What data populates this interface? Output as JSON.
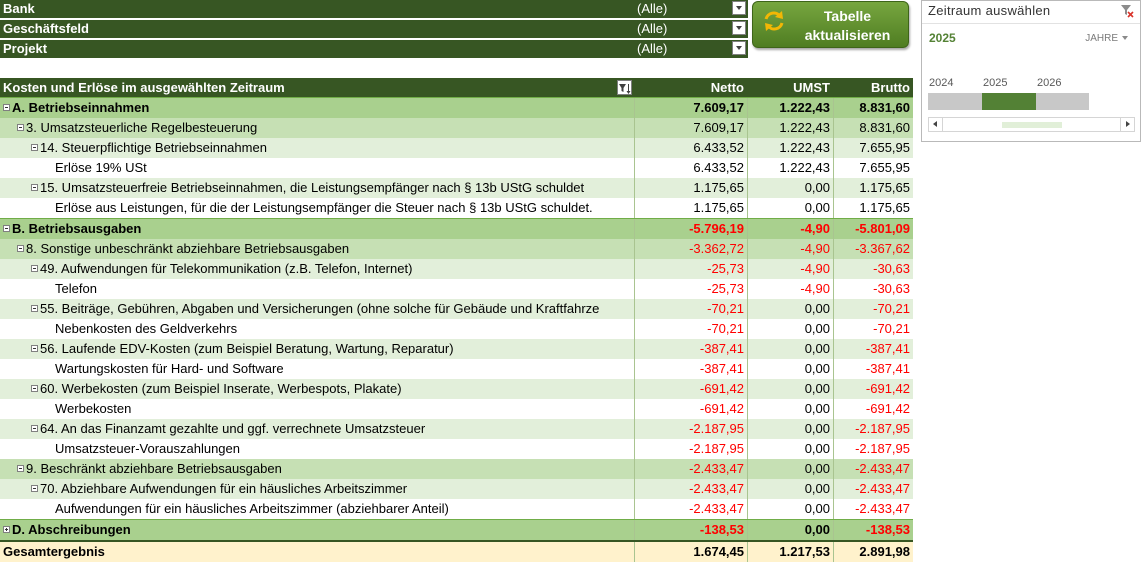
{
  "filters": [
    {
      "label": "Bank",
      "value": "(Alle)"
    },
    {
      "label": "Geschäftsfeld",
      "value": "(Alle)"
    },
    {
      "label": "Projekt",
      "value": "(Alle)"
    }
  ],
  "refresh_button": {
    "line1": "Tabelle",
    "line2": "aktualisieren",
    "icon": "refresh-icon"
  },
  "timeline": {
    "title": "Zeitraum auswählen",
    "selected": "2025",
    "level": "JAHRE",
    "years": [
      "2024",
      "2025",
      "2026"
    ],
    "selected_year": "2025",
    "clear_icon": "clear-filter-icon"
  },
  "table": {
    "header": {
      "label": "Kosten und Erlöse im ausgewählten Zeitraum",
      "netto": "Netto",
      "umst": "UMST",
      "brutto": "Brutto"
    },
    "rows": [
      {
        "level": 0,
        "toggle": "minus",
        "label": "A. Betriebseinnahmen",
        "netto": "7.609,17",
        "umst": "1.222,43",
        "brutto": "8.831,60"
      },
      {
        "level": 1,
        "toggle": "minus",
        "label": "3. Umsatzsteuerliche Regelbesteuerung",
        "netto": "7.609,17",
        "umst": "1.222,43",
        "brutto": "8.831,60"
      },
      {
        "level": 2,
        "toggle": "minus",
        "label": "14. Steuerpflichtige Betriebseinnahmen",
        "netto": "6.433,52",
        "umst": "1.222,43",
        "brutto": "7.655,95"
      },
      {
        "level": 3,
        "toggle": "",
        "label": "Erlöse 19% USt",
        "netto": "6.433,52",
        "umst": "1.222,43",
        "brutto": "7.655,95"
      },
      {
        "level": 2,
        "toggle": "minus",
        "label": "15. Umsatzsteuerfreie Betriebseinnahmen, die Leistungsempfänger nach § 13b UStG schuldet",
        "netto": "1.175,65",
        "umst": "0,00",
        "brutto": "1.175,65"
      },
      {
        "level": 3,
        "toggle": "",
        "label": "Erlöse aus Leistungen, für die der Leistungsempfänger die Steuer nach § 13b UStG schuldet.",
        "netto": "1.175,65",
        "umst": "0,00",
        "brutto": "1.175,65"
      },
      {
        "level": 0,
        "toggle": "minus",
        "label": "B. Betriebsausgaben",
        "netto": "-5.796,19",
        "umst": "-4,90",
        "brutto": "-5.801,09"
      },
      {
        "level": 1,
        "toggle": "minus",
        "label": "8. Sonstige unbeschränkt abziehbare Betriebsausgaben",
        "netto": "-3.362,72",
        "umst": "-4,90",
        "brutto": "-3.367,62"
      },
      {
        "level": 2,
        "toggle": "minus",
        "label": "49. Aufwendungen für Telekommunikation (z.B. Telefon, Internet)",
        "netto": "-25,73",
        "umst": "-4,90",
        "brutto": "-30,63"
      },
      {
        "level": 3,
        "toggle": "",
        "label": "Telefon",
        "netto": "-25,73",
        "umst": "-4,90",
        "brutto": "-30,63"
      },
      {
        "level": 2,
        "toggle": "minus",
        "label": "55. Beiträge, Gebühren, Abgaben und Versicherungen (ohne solche für Gebäude und Kraftfahrze",
        "netto": "-70,21",
        "umst": "0,00",
        "brutto": "-70,21"
      },
      {
        "level": 3,
        "toggle": "",
        "label": "Nebenkosten des Geldverkehrs",
        "netto": "-70,21",
        "umst": "0,00",
        "brutto": "-70,21"
      },
      {
        "level": 2,
        "toggle": "minus",
        "label": "56. Laufende EDV-Kosten (zum Beispiel Beratung, Wartung, Reparatur)",
        "netto": "-387,41",
        "umst": "0,00",
        "brutto": "-387,41"
      },
      {
        "level": 3,
        "toggle": "",
        "label": "Wartungskosten für Hard- und Software",
        "netto": "-387,41",
        "umst": "0,00",
        "brutto": "-387,41"
      },
      {
        "level": 2,
        "toggle": "minus",
        "label": "60. Werbekosten (zum Beispiel Inserate, Werbespots, Plakate)",
        "netto": "-691,42",
        "umst": "0,00",
        "brutto": "-691,42"
      },
      {
        "level": 3,
        "toggle": "",
        "label": "Werbekosten",
        "netto": "-691,42",
        "umst": "0,00",
        "brutto": "-691,42"
      },
      {
        "level": 2,
        "toggle": "minus",
        "label": "64. An das Finanzamt gezahlte und ggf. verrechnete Umsatzsteuer",
        "netto": "-2.187,95",
        "umst": "0,00",
        "brutto": "-2.187,95"
      },
      {
        "level": 3,
        "toggle": "",
        "label": "Umsatzsteuer-Vorauszahlungen",
        "netto": "-2.187,95",
        "umst": "0,00",
        "brutto": "-2.187,95"
      },
      {
        "level": 1,
        "toggle": "minus",
        "label": "9. Beschränkt abziehbare Betriebsausgaben",
        "netto": "-2.433,47",
        "umst": "0,00",
        "brutto": "-2.433,47"
      },
      {
        "level": 2,
        "toggle": "minus",
        "label": "70. Abziehbare Aufwendungen für ein häusliches Arbeitszimmer",
        "netto": "-2.433,47",
        "umst": "0,00",
        "brutto": "-2.433,47"
      },
      {
        "level": 3,
        "toggle": "",
        "label": "Aufwendungen für ein häusliches Arbeitszimmer (abziehbarer Anteil)",
        "netto": "-2.433,47",
        "umst": "0,00",
        "brutto": "-2.433,47"
      },
      {
        "level": 0,
        "toggle": "plus",
        "label": "D. Abschreibungen",
        "netto": "-138,53",
        "umst": "0,00",
        "brutto": "-138,53"
      }
    ],
    "total": {
      "label": "Gesamtergebnis",
      "netto": "1.674,45",
      "umst": "1.217,53",
      "brutto": "2.891,98"
    }
  },
  "colors": {
    "header_green": "#375623",
    "accent_green": "#538135",
    "negative": "#ff0000"
  }
}
